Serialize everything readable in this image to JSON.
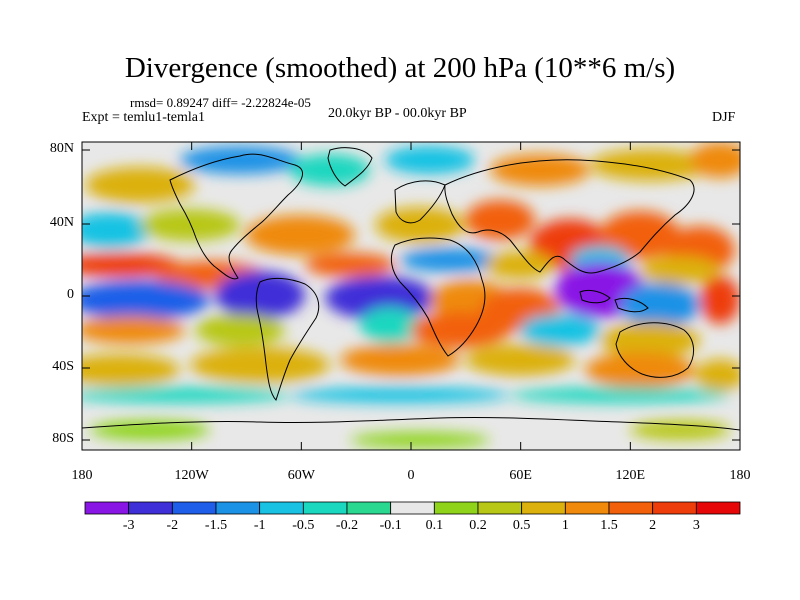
{
  "title": "Divergence (smoothed) at 200 hPa (10**6 m/s)",
  "stats": "rmsd= 0.89247 diff= -2.22824e-05",
  "experiment": "Expt = temlu1-temla1",
  "period": "20.0kyr BP - 00.0kyr BP",
  "season": "DJF",
  "axes": {
    "lat_ticks": [
      "80N",
      "40N",
      "0",
      "40S",
      "80S"
    ],
    "lon_ticks": [
      "180",
      "120W",
      "60W",
      "0",
      "60E",
      "120E",
      "180"
    ]
  },
  "colorbar": {
    "labels": [
      "-3",
      "-2",
      "-1.5",
      "-1",
      "-0.5",
      "-0.2",
      "-0.1",
      "0.1",
      "0.2",
      "0.5",
      "1",
      "1.5",
      "2",
      "3"
    ],
    "colors": [
      "#8a16e6",
      "#3f2fd8",
      "#1e5ee8",
      "#1c92e6",
      "#19c2e3",
      "#1ad7c0",
      "#2ad890",
      "#e8e8e8",
      "#8fd41a",
      "#b8c716",
      "#dcb10e",
      "#ef8a0c",
      "#f2600b",
      "#ee3c0a",
      "#e60808"
    ]
  },
  "colors": {
    "neutral": "#e8e8e8",
    "coast": "#000000",
    "frame": "#000000"
  }
}
